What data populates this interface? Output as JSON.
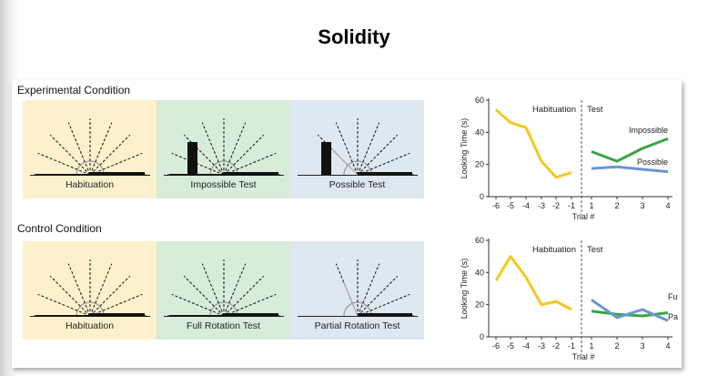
{
  "slide": {
    "title": "Solidity"
  },
  "conditions": [
    {
      "label": "Experimental Condition",
      "scenes": [
        {
          "caption": "Habituation",
          "color": "#fdf1cd",
          "type": "habituation"
        },
        {
          "caption": "Impossible Test",
          "color": "#d7ecd9",
          "type": "impossible"
        },
        {
          "caption": "Possible Test",
          "color": "#dde8f1",
          "type": "possible"
        }
      ]
    },
    {
      "label": "Control Condition",
      "scenes": [
        {
          "caption": "Habituation",
          "color": "#fdf1cd",
          "type": "habituation"
        },
        {
          "caption": "Full Rotation Test",
          "color": "#d7ecd9",
          "type": "full"
        },
        {
          "caption": "Partial Rotation Test",
          "color": "#dde8f1",
          "type": "partial"
        }
      ]
    }
  ],
  "chart_data": [
    {
      "type": "line",
      "ylabel": "Looking Time (s)",
      "xlabel": "Trial #",
      "ylim": [
        0,
        60
      ],
      "yticks": [
        0,
        20,
        40,
        60
      ],
      "xticks": [
        "-6",
        "-5",
        "-4",
        "-3",
        "-2",
        "-1",
        "1",
        "2",
        "3",
        "4"
      ],
      "phase_labels": [
        "Habituation",
        "Test"
      ],
      "habituation": {
        "x": [
          -6,
          -5,
          -4,
          -3,
          -2,
          -1
        ],
        "values": [
          54,
          46,
          43,
          22,
          12,
          15
        ],
        "color": "#f4c81f"
      },
      "series": [
        {
          "name": "Impossible",
          "x": [
            1,
            2,
            3,
            4
          ],
          "values": [
            28,
            22,
            30,
            36
          ],
          "color": "#3aa547"
        },
        {
          "name": "Possible",
          "x": [
            1,
            2,
            3,
            4
          ],
          "values": [
            17.5,
            18.5,
            17,
            15.5
          ],
          "color": "#6a97cf"
        }
      ]
    },
    {
      "type": "line",
      "ylabel": "Looking Time (s)",
      "xlabel": "Trial #",
      "ylim": [
        0,
        60
      ],
      "yticks": [
        0,
        20,
        40,
        60
      ],
      "xticks": [
        "-6",
        "-5",
        "-4",
        "-3",
        "-2",
        "-1",
        "1",
        "2",
        "3",
        "4"
      ],
      "phase_labels": [
        "Habituation",
        "Test"
      ],
      "habituation": {
        "x": [
          -6,
          -5,
          -4,
          -3,
          -2,
          -1
        ],
        "values": [
          35,
          50,
          37,
          20,
          22,
          17
        ],
        "color": "#f4c81f"
      },
      "series": [
        {
          "name": "Full",
          "x": [
            1,
            2,
            3,
            4
          ],
          "values": [
            16,
            14,
            13,
            15
          ],
          "color": "#3aa547"
        },
        {
          "name": "Partial",
          "x": [
            1,
            2,
            3,
            4
          ],
          "values": [
            23,
            12,
            17,
            10
          ],
          "color": "#6a97cf"
        }
      ]
    }
  ]
}
